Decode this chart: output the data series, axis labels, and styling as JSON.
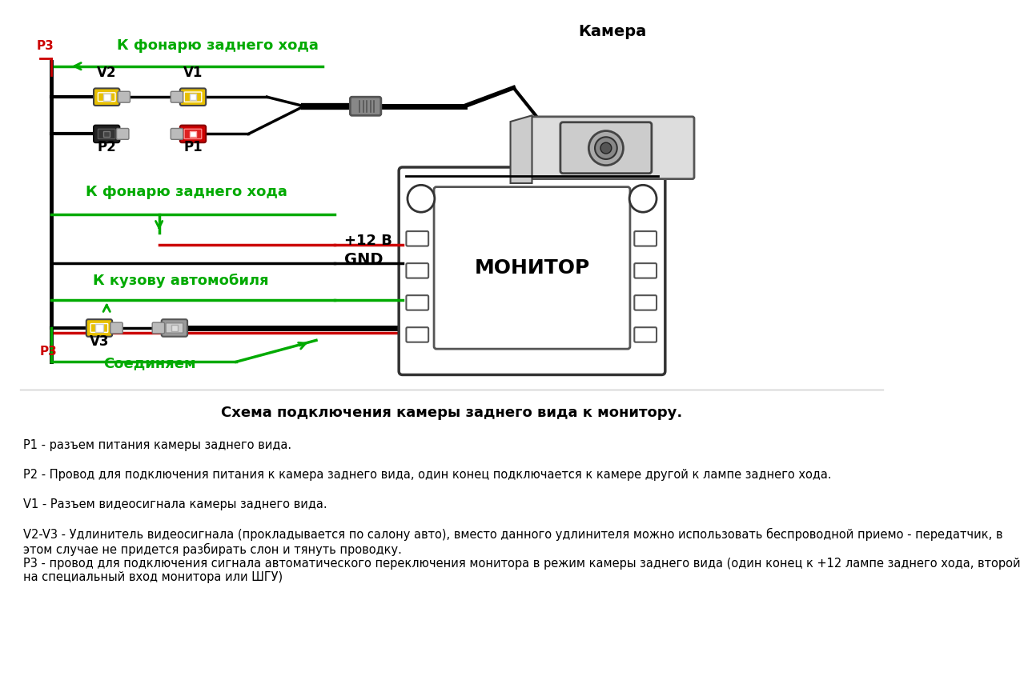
{
  "bg_color": "#ffffff",
  "title_text": "Схема подключения камеры заднего вида к монитору.",
  "title_fontsize": 13,
  "title_bold": true,
  "description_lines": [
    "P1 - разъем питания камеры заднего вида.",
    "P2 - Провод для подключения питания к камера заднего вида, один конец подключается к камере другой к лампе заднего хода.",
    "V1 - Разъем видеосигнала камеры заднего вида.",
    "V2-V3 - Удлинитель видеосигнала (прокладывается по салону авто), вместо данного удлинителя можно использовать беспроводной приемо - передатчик, в\nэтом случае не придется разбирать слон и тянуть проводку.",
    "P3 - провод для подключения сигнала автоматического переключения монитора в режим камеры заднего вида (один конец к +12 лампе заднего хода, второй\nна специальный вход монитора или ШГУ)"
  ],
  "desc_fontsize": 10.5,
  "label_green": "#00aa00",
  "label_red": "#cc0000",
  "label_black": "#000000",
  "wire_green": "#00aa00",
  "wire_red": "#cc0000",
  "wire_black": "#000000",
  "connector_yellow": "#e8c000",
  "connector_red": "#cc0000",
  "connector_black": "#222222",
  "connector_gray": "#999999"
}
